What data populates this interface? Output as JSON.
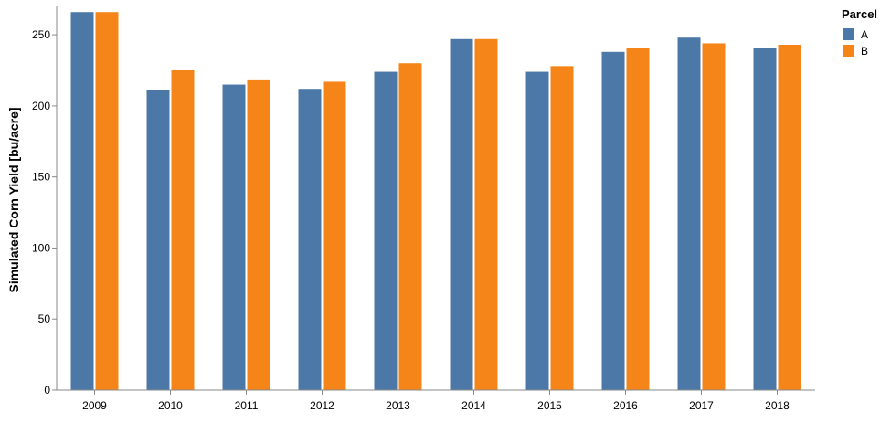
{
  "chart_data": {
    "type": "bar",
    "title": "",
    "xlabel": "",
    "ylabel": "Simulated Corn Yield [bu/acre]",
    "categories": [
      "2009",
      "2010",
      "2011",
      "2012",
      "2013",
      "2014",
      "2015",
      "2016",
      "2017",
      "2018"
    ],
    "series": [
      {
        "name": "A",
        "color": "#4c78a8",
        "values": [
          266,
          211,
          215,
          212,
          224,
          247,
          224,
          238,
          248,
          241
        ]
      },
      {
        "name": "B",
        "color": "#f58518",
        "values": [
          266,
          225,
          218,
          217,
          230,
          247,
          228,
          241,
          244,
          243
        ]
      }
    ],
    "ylim": [
      0,
      270
    ],
    "yticks": [
      0,
      50,
      100,
      150,
      200,
      250
    ],
    "grid": false,
    "legend": {
      "title": "Parcel",
      "placement": "top-right"
    }
  }
}
